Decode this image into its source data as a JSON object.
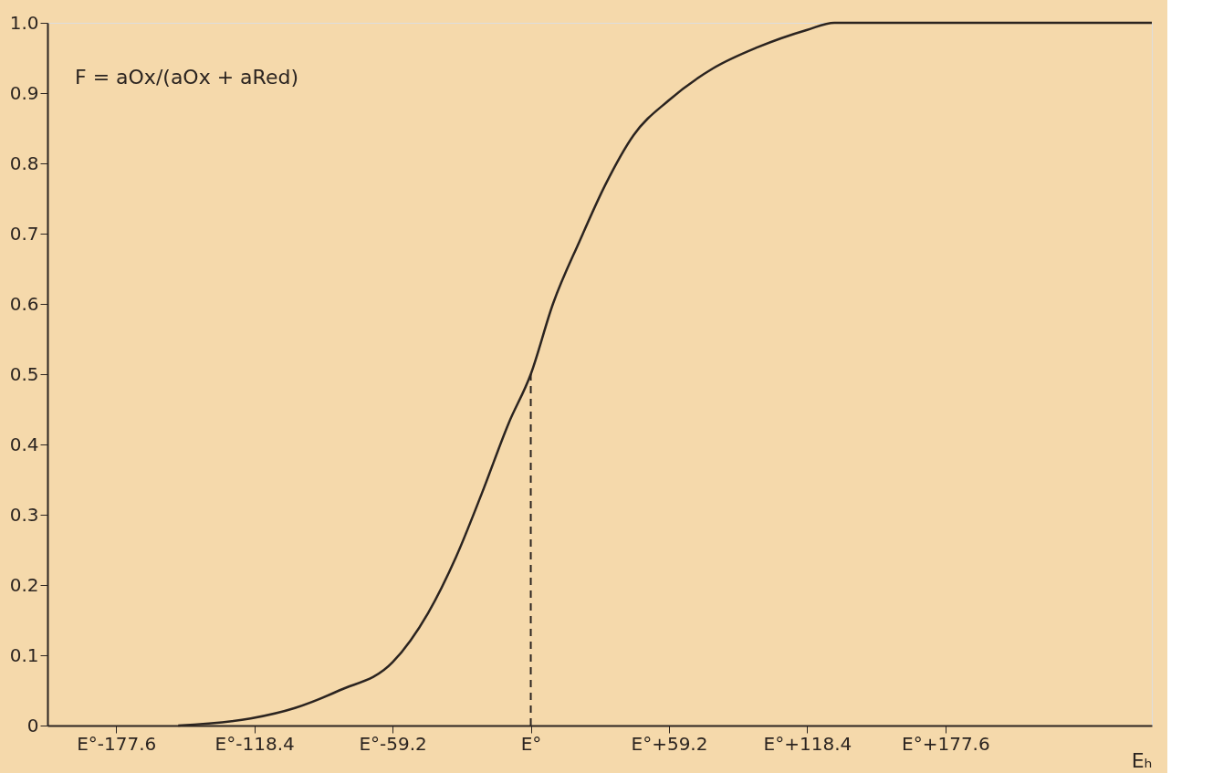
{
  "chart_data": {
    "type": "line",
    "xlabel": "Eₕ",
    "x": [
      -151,
      -120,
      -101,
      -82,
      -59.2,
      -44,
      -32,
      -21,
      -9.5,
      0,
      9.5,
      21,
      32,
      44,
      59.2,
      78,
      97,
      118.4,
      130,
      266
    ],
    "series": [
      {
        "color": "#2b2420",
        "values": [
          0,
          0.01,
          0.025,
          0.05,
          0.09,
          0.16,
          0.24,
          0.33,
          0.43,
          0.5,
          0.6,
          0.69,
          0.77,
          0.84,
          0.89,
          0.935,
          0.965,
          0.99,
          1.0,
          1.0
        ]
      }
    ],
    "xlim": [
      -207,
      266
    ],
    "ylim": [
      0,
      1
    ],
    "xticks": [
      {
        "value": -177.6,
        "label": "E°-177.6"
      },
      {
        "value": -118.4,
        "label": "E°-118.4"
      },
      {
        "value": -59.2,
        "label": "E°-59.2"
      },
      {
        "value": 0,
        "label": "E°"
      },
      {
        "value": 59.2,
        "label": "E°+59.2"
      },
      {
        "value": 118.4,
        "label": "E°+118.4"
      },
      {
        "value": 177.6,
        "label": "E°+177.6"
      }
    ],
    "yticks": [
      0,
      0.1,
      0.2,
      0.3,
      0.4,
      0.5,
      0.6,
      0.7,
      0.8,
      0.9,
      {
        "value": 1,
        "label": "1.0"
      }
    ],
    "ref_lines": [
      {
        "axis": "x",
        "value": 0,
        "line_style": "dashed",
        "color": "#2b2420"
      }
    ],
    "annotations": [
      "F = aOx/(aOx + aRed)"
    ],
    "grid": false,
    "marker": "none",
    "line_style": "solid"
  }
}
